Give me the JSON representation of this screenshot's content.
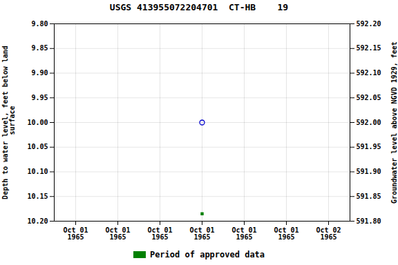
{
  "chart_data": {
    "type": "scatter",
    "title": "USGS 413955072204701  CT-HB    19",
    "categories": [
      "Oct 01\n1965",
      "Oct 01\n1965",
      "Oct 01\n1965",
      "Oct 01\n1965",
      "Oct 01\n1965",
      "Oct 01\n1965",
      "Oct 02\n1965"
    ],
    "series": [
      {
        "color": "#0000cc",
        "marker": "circle_open",
        "values": [
          null,
          null,
          null,
          10.0,
          null,
          null,
          null
        ]
      },
      {
        "name": "Period of approved data",
        "color": "#008000",
        "marker": "square",
        "values": [
          null,
          null,
          null,
          10.185,
          null,
          null,
          null
        ]
      }
    ],
    "ylabel": "Depth to water level, feet below land\n surface",
    "y2label": "Groundwater level above NGVD 1929, feet",
    "ylim": [
      10.2,
      9.8
    ],
    "yticks": [
      {
        "value": 9.8,
        "label": "9.80"
      },
      9.85,
      {
        "value": 9.9,
        "label": "9.90"
      },
      9.95,
      {
        "value": 10.0,
        "label": "10.00"
      },
      10.05,
      {
        "value": 10.1,
        "label": "10.10"
      },
      10.15,
      {
        "value": 10.2,
        "label": "10.20"
      }
    ],
    "y2lim": [
      591.8,
      592.2
    ],
    "y2ticks": [
      {
        "value": 592.2,
        "label": "592.20"
      },
      592.15,
      {
        "value": 592.1,
        "label": "592.10"
      },
      592.05,
      {
        "value": 592.0,
        "label": "592.00"
      },
      591.95,
      {
        "value": 591.9,
        "label": "591.90"
      },
      591.85,
      {
        "value": 591.8,
        "label": "591.80"
      }
    ],
    "grid": true,
    "legend": "bottom"
  }
}
